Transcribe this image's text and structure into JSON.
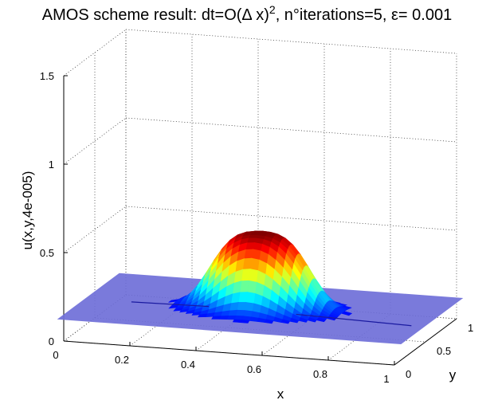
{
  "chart_data": {
    "type": "surface",
    "title": "AMOS scheme result: dt=O(Δ x)",
    "title_superscript": "2",
    "title_tail": ", n°iterations=5, ε= 0.001",
    "xlabel": "x",
    "ylabel": "y",
    "zlabel": "u(x,y,4e-005)",
    "x_ticks": [
      "0",
      "0.2",
      "0.4",
      "0.6",
      "0.8",
      "1"
    ],
    "y_ticks": [
      "0",
      "0.5",
      "1"
    ],
    "z_ticks": [
      "0",
      "0.5",
      "1",
      "1.5"
    ],
    "xlim": [
      0,
      1
    ],
    "ylim": [
      0,
      1
    ],
    "zlim": [
      0,
      1.5
    ],
    "grid": true,
    "colormap": "jet",
    "surface_peak": {
      "x": 0.5,
      "y": 0.5,
      "u": 0.55
    },
    "surface_base": 0.12,
    "colors": {
      "base_plane": "#6f6fd8",
      "peak": "#ff2000",
      "low": "#3b5cff"
    }
  }
}
